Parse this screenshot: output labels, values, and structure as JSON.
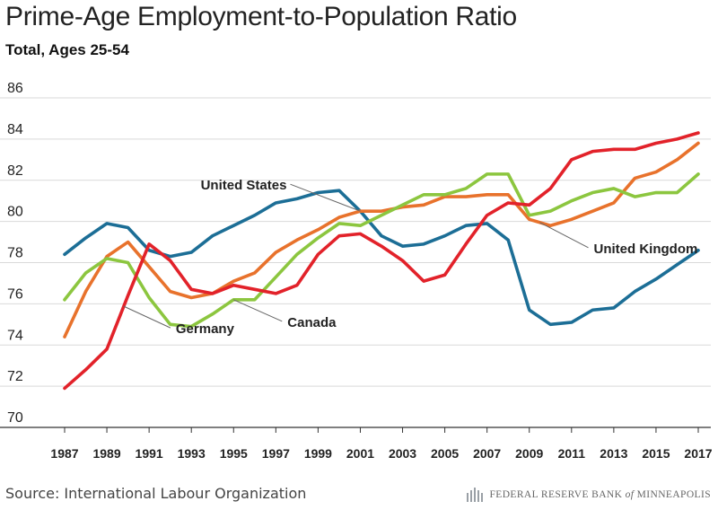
{
  "title": "Prime-Age Employment-to-Population Ratio",
  "subtitle": "Total, Ages 25-54",
  "source": "Source: International Labour Organization",
  "brand": {
    "prefix": "FEDERAL RESERVE BANK ",
    "of": "of",
    "suffix": " MINNEAPOLIS"
  },
  "colors": {
    "grid": "#d9d9d9",
    "label": "#222222",
    "axis": "#333333"
  },
  "chart_data": {
    "type": "line",
    "xlim": [
      1987,
      2017
    ],
    "ylim": [
      70,
      86
    ],
    "yticks": [
      70,
      72,
      74,
      76,
      78,
      80,
      82,
      84,
      86
    ],
    "xticks": [
      1987,
      1989,
      1991,
      1993,
      1995,
      1997,
      1999,
      2001,
      2003,
      2005,
      2007,
      2009,
      2011,
      2013,
      2015,
      2017
    ],
    "grid": true,
    "x": [
      1987,
      1988,
      1989,
      1990,
      1991,
      1992,
      1993,
      1994,
      1995,
      1996,
      1997,
      1998,
      1999,
      2000,
      2001,
      2002,
      2003,
      2004,
      2005,
      2006,
      2007,
      2008,
      2009,
      2010,
      2011,
      2012,
      2013,
      2014,
      2015,
      2016,
      2017
    ],
    "series": [
      {
        "name": "United States",
        "color": "#1c6e96",
        "label_pos": "upper-middle",
        "values": [
          78.4,
          79.2,
          79.9,
          79.7,
          78.6,
          78.3,
          78.5,
          79.3,
          79.8,
          80.3,
          80.9,
          81.1,
          81.4,
          81.5,
          80.5,
          79.3,
          78.8,
          78.9,
          79.3,
          79.8,
          79.9,
          79.1,
          75.7,
          75.0,
          75.1,
          75.7,
          75.8,
          76.6,
          77.2,
          77.9,
          78.6
        ]
      },
      {
        "name": "United Kingdom",
        "color": "#e8722c",
        "label_pos": "right",
        "values": [
          74.4,
          76.6,
          78.3,
          79.0,
          77.8,
          76.6,
          76.3,
          76.5,
          77.1,
          77.5,
          78.5,
          79.1,
          79.6,
          80.2,
          80.5,
          80.5,
          80.7,
          80.8,
          81.2,
          81.2,
          81.3,
          81.3,
          80.1,
          79.8,
          80.1,
          80.5,
          80.9,
          82.1,
          82.4,
          83.0,
          83.8
        ]
      },
      {
        "name": "Canada",
        "color": "#8cc63f",
        "label_pos": "lower-middle",
        "values": [
          76.2,
          77.5,
          78.2,
          78.0,
          76.3,
          75.0,
          74.9,
          75.5,
          76.2,
          76.2,
          77.3,
          78.4,
          79.2,
          79.9,
          79.8,
          80.3,
          80.8,
          81.3,
          81.3,
          81.6,
          82.3,
          82.3,
          80.3,
          80.5,
          81.0,
          81.4,
          81.6,
          81.2,
          81.4,
          81.4,
          82.3
        ]
      },
      {
        "name": "Germany",
        "color": "#e2222a",
        "label_pos": "lower-left",
        "values": [
          71.9,
          72.8,
          73.8,
          76.4,
          78.9,
          78.1,
          76.7,
          76.5,
          76.9,
          76.7,
          76.5,
          76.9,
          78.4,
          79.3,
          79.4,
          78.8,
          78.1,
          77.1,
          77.4,
          78.9,
          80.3,
          80.9,
          80.8,
          81.6,
          83.0,
          83.4,
          83.5,
          83.5,
          83.8,
          84.0,
          84.3
        ]
      }
    ]
  }
}
